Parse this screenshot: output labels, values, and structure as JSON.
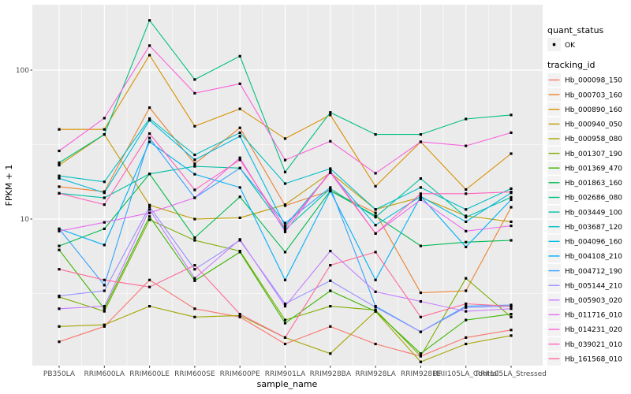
{
  "figure": {
    "background": "#FFFFFF",
    "panel_background": "#EBEBEB",
    "grid_color": "#FFFFFF",
    "legend_key_background": "#F2F2F2",
    "tick_text_color": "#4D4D4D",
    "title_text_color": "#000000",
    "point_color": "#000000"
  },
  "chart_data": {
    "type": "line",
    "x_axis": {
      "label": "sample_name",
      "categories": [
        "PB350LA",
        "RRIM600LA",
        "RRIM600LE",
        "RRIM600SE",
        "RRIM600PE",
        "RRIM901LA",
        "RRIM928BA",
        "RRIM928LA",
        "RRIM928LE",
        "RRII105LA_Control",
        "RRII105LA_Stressed"
      ]
    },
    "y_axis": {
      "label": "FPKM + 1",
      "scale": "log10",
      "ticks": [
        100,
        10
      ],
      "range_approx": [
        1.05,
        262
      ]
    },
    "grid": true,
    "legend": {
      "position": "right",
      "quant_status": {
        "title": "quant_status",
        "items": [
          {
            "label": "OK",
            "glyph": "point",
            "color": "#000000"
          }
        ]
      },
      "tracking_id": {
        "title": "tracking_id"
      }
    },
    "series": [
      {
        "name": "Hb_000098_150",
        "color": "#F8766D",
        "values": [
          1.5,
          1.9,
          3.9,
          2.5,
          2.2,
          1.45,
          1.9,
          1.45,
          1.2,
          1.6,
          1.8
        ]
      },
      {
        "name": "Hb_000703_160",
        "color": "#EA8331",
        "values": [
          16.5,
          15.3,
          56,
          23.5,
          41,
          12.3,
          15.5,
          11,
          3.2,
          3.3,
          12
        ]
      },
      {
        "name": "Hb_000890_160",
        "color": "#D89000",
        "values": [
          40,
          40,
          126,
          42,
          55,
          34.7,
          50,
          16.6,
          33,
          15.8,
          27.5
        ]
      },
      {
        "name": "Hb_000940_050",
        "color": "#C09B00",
        "values": [
          23,
          37,
          12.4,
          10,
          10.2,
          12.5,
          20.5,
          11.6,
          14,
          10.5,
          9.6
        ]
      },
      {
        "name": "Hb_000958_080",
        "color": "#A3A500",
        "values": [
          1.9,
          1.95,
          2.6,
          2.2,
          2.25,
          1.6,
          1.25,
          2.4,
          1.1,
          1.45,
          1.65
        ]
      },
      {
        "name": "Hb_001307_190",
        "color": "#7CAE00",
        "values": [
          3.0,
          2.4,
          9.9,
          7.2,
          6.1,
          2.1,
          2.6,
          2.45,
          1.2,
          4.0,
          2.2
        ]
      },
      {
        "name": "Hb_001369_470",
        "color": "#39B600",
        "values": [
          6.2,
          2.5,
          10.4,
          3.85,
          6.0,
          2.0,
          3.3,
          2.4,
          1.25,
          2.1,
          2.3
        ]
      },
      {
        "name": "Hb_001863_160",
        "color": "#00BB4E",
        "values": [
          6.6,
          8.6,
          20.1,
          7.5,
          14.1,
          6.0,
          15.5,
          10.5,
          6.6,
          7.0,
          7.2
        ]
      },
      {
        "name": "Hb_002686_080",
        "color": "#00BF7D",
        "values": [
          23.9,
          37,
          216,
          86.5,
          124,
          20.7,
          52,
          37,
          37,
          47,
          50
        ]
      },
      {
        "name": "Hb_003449_100",
        "color": "#00C1A3",
        "values": [
          14.9,
          13.9,
          20.1,
          22.6,
          22,
          8.5,
          16,
          10.3,
          18.7,
          10.3,
          14
        ]
      },
      {
        "name": "Hb_003687_120",
        "color": "#00BFC4",
        "values": [
          19.5,
          17.8,
          47.3,
          27,
          38,
          17.3,
          21.8,
          11.6,
          16.3,
          11.6,
          16
        ]
      },
      {
        "name": "Hb_004096_160",
        "color": "#00BAE0",
        "values": [
          18.8,
          15.0,
          46,
          25,
          36,
          9.0,
          20.5,
          9.1,
          14.2,
          9.6,
          15
        ]
      },
      {
        "name": "Hb_004108_210",
        "color": "#00B0F6",
        "values": [
          8.6,
          6.7,
          33,
          20,
          16.3,
          3.9,
          15.4,
          3.9,
          14.2,
          6.5,
          13.5
        ]
      },
      {
        "name": "Hb_004712_190",
        "color": "#35A2FF",
        "values": [
          8.6,
          3.6,
          35,
          13.9,
          22,
          9.4,
          16.3,
          2.6,
          1.75,
          2.6,
          2.65
        ]
      },
      {
        "name": "Hb_005144_210",
        "color": "#9590FF",
        "values": [
          3.05,
          3.3,
          12.1,
          4.6,
          7.2,
          2.7,
          3.85,
          2.56,
          1.75,
          2.55,
          2.6
        ]
      },
      {
        "name": "Hb_005903_020",
        "color": "#C77CFF",
        "values": [
          2.5,
          2.6,
          11.6,
          4.0,
          7.3,
          2.6,
          6.1,
          3.25,
          2.8,
          2.4,
          2.5
        ]
      },
      {
        "name": "Hb_011716_010",
        "color": "#E76BF3",
        "values": [
          8.3,
          9.5,
          11.0,
          13.9,
          25.8,
          8.2,
          21,
          8.0,
          13.5,
          8.3,
          9.0
        ]
      },
      {
        "name": "Hb_014231_020",
        "color": "#FA62DB",
        "values": [
          28.7,
          47.6,
          146,
          70,
          81,
          24.9,
          33.3,
          20.3,
          33,
          31,
          38
        ]
      },
      {
        "name": "Hb_039021_010",
        "color": "#FF62BC",
        "values": [
          14.9,
          12.5,
          37.5,
          15.7,
          25,
          8.7,
          20.5,
          8.0,
          14.8,
          14.8,
          15.2
        ]
      },
      {
        "name": "Hb_161568_010",
        "color": "#FF6A98",
        "values": [
          4.6,
          3.9,
          3.5,
          4.9,
          2.3,
          1.6,
          4.9,
          6.0,
          2.2,
          2.7,
          2.6
        ]
      }
    ]
  }
}
